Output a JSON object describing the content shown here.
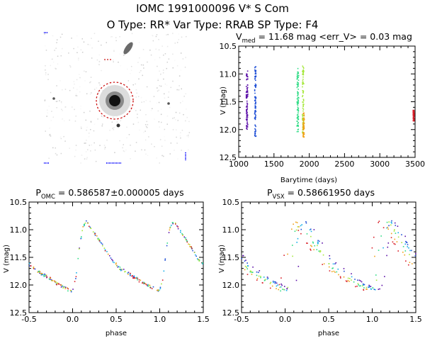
{
  "header": {
    "title": "IOMC 1991000096    V* S Com",
    "subtitle": "O Type: RR*   Var Type: RRAB   SP Type: F4"
  },
  "colors": {
    "purple": "#5b0fa8",
    "blue": "#1f4fd6",
    "cyan": "#14aee8",
    "green": "#2fdc86",
    "lime": "#a6e83c",
    "orange": "#f0a21a",
    "red": "#d8202a"
  },
  "chart_data": [
    {
      "id": "timeseries",
      "type": "scatter",
      "title_prefix": "V",
      "title_sub": "med",
      "title_rest": " = 11.68 mag <err_V> = 0.03 mag",
      "xlabel": "Barytime (days)",
      "ylabel": "V (mag)",
      "xlim": [
        1000,
        3500
      ],
      "ylim": [
        12.5,
        10.5
      ],
      "xticks": [
        1000,
        1500,
        2000,
        2500,
        3000,
        3500
      ],
      "yticks": [
        10.5,
        11.0,
        11.5,
        12.0,
        12.5
      ],
      "series": [
        {
          "name": "segment-1",
          "color": "purple",
          "x": [
            1110,
            1118,
            1126
          ],
          "v_range": [
            10.9,
            12.0
          ]
        },
        {
          "name": "segment-2",
          "color": "blue",
          "x": [
            1230,
            1236,
            1242
          ],
          "v_range": [
            10.85,
            12.15
          ]
        },
        {
          "name": "segment-3",
          "color": "green",
          "x": [
            1830,
            1838,
            1846
          ],
          "v_range": [
            10.9,
            12.05
          ]
        },
        {
          "name": "segment-4",
          "color": "lime",
          "x": [
            1905,
            1912,
            1918
          ],
          "v_range": [
            10.85,
            12.1
          ]
        },
        {
          "name": "segment-5",
          "color": "orange",
          "x": [
            1915,
            1925
          ],
          "v_range": [
            11.7,
            12.15
          ]
        },
        {
          "name": "segment-6",
          "color": "red",
          "x": [
            3475,
            3485
          ],
          "v_range": [
            11.65,
            11.85
          ]
        }
      ]
    },
    {
      "id": "phase-omc",
      "type": "scatter",
      "title_prefix": "P",
      "title_sub": "OMC",
      "title_rest": " = 0.586587±0.000005 days",
      "xlabel": "phase",
      "ylabel": "V (mag)",
      "xlim": [
        -0.5,
        1.5
      ],
      "ylim": [
        12.5,
        10.5
      ],
      "xticks": [
        -0.5,
        0.0,
        0.5,
        1.0,
        1.5
      ],
      "yticks": [
        10.5,
        11.0,
        11.5,
        12.0,
        12.5
      ],
      "curve": {
        "phase": [
          0.0,
          0.04,
          0.08,
          0.12,
          0.16,
          0.25,
          0.35,
          0.45,
          0.55,
          0.65,
          0.75,
          0.85,
          0.95,
          1.0
        ],
        "v": [
          12.1,
          11.85,
          11.3,
          10.95,
          10.85,
          11.05,
          11.3,
          11.55,
          11.7,
          11.8,
          11.9,
          12.0,
          12.08,
          12.1
        ]
      },
      "colors": [
        "purple",
        "blue",
        "cyan",
        "green",
        "lime",
        "orange",
        "red"
      ]
    },
    {
      "id": "phase-vsx",
      "type": "scatter",
      "title_prefix": "P",
      "title_sub": "VSX",
      "title_rest": " = 0.58661950 days",
      "xlabel": "phase",
      "ylabel": "V (mag)",
      "xlim": [
        -0.5,
        1.5
      ],
      "ylim": [
        12.5,
        10.5
      ],
      "xticks": [
        -0.5,
        0.0,
        0.5,
        1.0,
        1.5
      ],
      "yticks": [
        10.5,
        11.0,
        11.5,
        12.0,
        12.5
      ],
      "curve": {
        "phase": [
          0.0,
          0.04,
          0.08,
          0.12,
          0.16,
          0.25,
          0.35,
          0.45,
          0.55,
          0.65,
          0.75,
          0.85,
          0.95,
          1.0
        ],
        "v": [
          12.1,
          11.85,
          11.3,
          10.95,
          10.85,
          11.05,
          11.3,
          11.55,
          11.7,
          11.8,
          11.9,
          12.0,
          12.08,
          12.1
        ]
      },
      "shifts": {
        "purple": 0.1,
        "blue": 0.07,
        "cyan": 0.05,
        "green": 0.0,
        "lime": 0.02,
        "orange": -0.04,
        "red": -0.08
      },
      "colors": [
        "purple",
        "blue",
        "cyan",
        "green",
        "lime",
        "orange",
        "red"
      ]
    }
  ]
}
